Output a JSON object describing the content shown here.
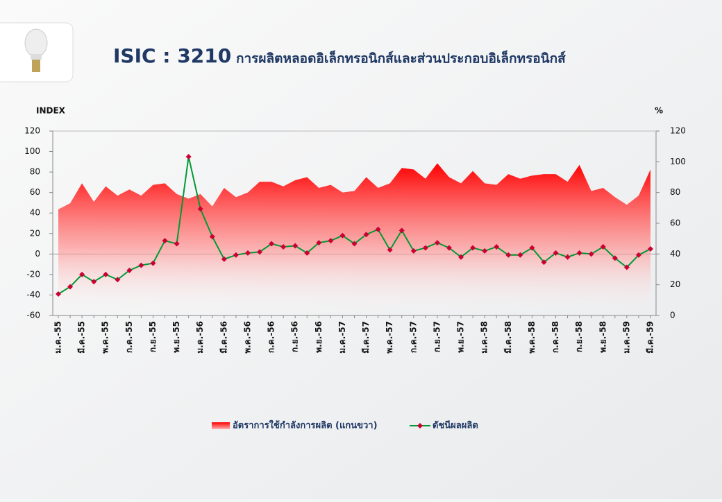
{
  "chart_data": {
    "type": "line-area",
    "title": "ISIC : 3210",
    "subtitle": "การผลิตหลอดอิเล็กทรอนิกส์และส่วนประกอบอิเล็กทรอนิกส์",
    "y_label": "INDEX",
    "y2_label": "%",
    "categories": [
      "ม.ค.-55",
      null,
      "มี.ค.-55",
      null,
      "พ.ค.-55",
      null,
      "ก.ค.-55",
      null,
      "ก.ย.-55",
      null,
      "พ.ย.-55",
      null,
      "ม.ค.-56",
      null,
      "มี.ค.-56",
      null,
      "พ.ค.-56",
      null,
      "ก.ค.-56",
      null,
      "ก.ย.-56",
      null,
      "พ.ย.-56",
      null,
      "ม.ค.-57",
      null,
      "มี.ค.-57",
      null,
      "พ.ค.-57",
      null,
      "ก.ค.-57",
      null,
      "ก.ย.-57",
      null,
      "พ.ย.-57",
      null,
      "ม.ค.-58",
      null,
      "มี.ค.-58",
      null,
      "พ.ค.-58",
      null,
      "ก.ค.-58",
      null,
      "ก.ย.-58",
      null,
      "พ.ย.-58",
      null,
      "ม.ค.-59",
      null,
      "มี.ค.-59"
    ],
    "series": [
      {
        "name": "อัตราการใช้กำลังการผลิต (แกนขวา)",
        "type": "area",
        "axis": "y2",
        "color": "#ff0000",
        "values": [
          69,
          73,
          86,
          74,
          84,
          78,
          82,
          78,
          85,
          86,
          79,
          76,
          79,
          71,
          83,
          77,
          80,
          87,
          87,
          84,
          88,
          90,
          83,
          85,
          80,
          81,
          90,
          83,
          86,
          96,
          95,
          89,
          99,
          90,
          86,
          94,
          86,
          85,
          92,
          89,
          91,
          92,
          92,
          87,
          98,
          81,
          83,
          77,
          72,
          78,
          95
        ]
      },
      {
        "name": "ดัชนีผลผลิต",
        "type": "line",
        "color": "#009933",
        "marker_color": "#cc0033",
        "values": [
          -39,
          -32,
          -20,
          -27,
          -20,
          -25,
          -16,
          -11,
          -9,
          13,
          10,
          95,
          44,
          17,
          -5,
          -1,
          1,
          2,
          10,
          7,
          8,
          1,
          11,
          13,
          18,
          10,
          19,
          24,
          4,
          23,
          3,
          6,
          11,
          6,
          -3,
          6,
          3,
          7,
          -1,
          -1,
          6,
          -8,
          1,
          -3,
          1,
          0,
          7,
          -4,
          -13,
          -1,
          5
        ]
      }
    ],
    "ylim": [
      -60,
      120
    ],
    "yticks": [
      -60,
      -40,
      -20,
      0,
      20,
      40,
      60,
      80,
      100,
      120
    ],
    "y2lim": [
      0,
      120
    ],
    "y2ticks": [
      0,
      20,
      40,
      60,
      80,
      100,
      120
    ],
    "legend": "bottom"
  }
}
